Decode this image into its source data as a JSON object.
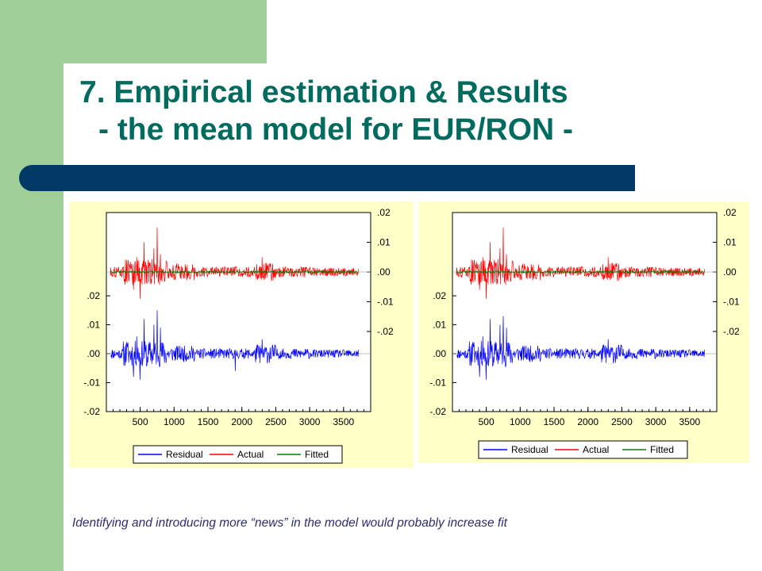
{
  "slide": {
    "title_line1": "7. Empirical estimation & Results",
    "title_line2": "- the mean model for EUR/RON -",
    "footnote": "Identifying and introducing more “news” in the model would probably increase fit"
  },
  "colors": {
    "green_band": "#9fcf97",
    "title_text": "#006b5e",
    "title_bar": "#003866",
    "panel_bg": "#ffffc8",
    "residual": "#0000ff",
    "actual": "#ff0000",
    "fitted": "#008000"
  },
  "chart_data": [
    {
      "type": "line",
      "title": "",
      "xlabel": "",
      "ylabel": "",
      "x_range": [
        1,
        3900
      ],
      "x_ticks": [
        "500",
        "1000",
        "1500",
        "2000",
        "2500",
        "3000",
        "3500"
      ],
      "left_axis": {
        "ticks": [
          ".02",
          ".01",
          ".00",
          "-.01",
          "-.02"
        ],
        "range": [
          -0.02,
          0.02
        ]
      },
      "right_axis": {
        "ticks": [
          ".02",
          ".01",
          ".00",
          "-.01",
          "-.02"
        ],
        "range": [
          -0.02,
          0.02
        ]
      },
      "series": [
        {
          "name": "Residual",
          "axis": "left",
          "color": "#0000ff",
          "description_points": [
            [
              60,
              0.0
            ],
            [
              300,
              0.004
            ],
            [
              400,
              -0.008
            ],
            [
              450,
              0.006
            ],
            [
              500,
              -0.009
            ],
            [
              560,
              0.012
            ],
            [
              600,
              -0.004
            ],
            [
              700,
              0.01
            ],
            [
              750,
              0.015
            ],
            [
              800,
              0.009
            ],
            [
              1000,
              0.003
            ],
            [
              1500,
              0.002
            ],
            [
              1900,
              -0.006
            ],
            [
              2000,
              0.003
            ],
            [
              2300,
              0.005
            ],
            [
              2450,
              -0.003
            ],
            [
              3000,
              0.002
            ],
            [
              3500,
              0.001
            ],
            [
              3700,
              0.0
            ]
          ]
        },
        {
          "name": "Actual",
          "axis": "right",
          "color": "#ff0000",
          "description_points": [
            [
              60,
              0.0
            ],
            [
              300,
              0.004
            ],
            [
              400,
              -0.006
            ],
            [
              450,
              0.005
            ],
            [
              500,
              -0.009
            ],
            [
              560,
              0.01
            ],
            [
              600,
              -0.004
            ],
            [
              700,
              0.008
            ],
            [
              750,
              0.015
            ],
            [
              800,
              0.006
            ],
            [
              1000,
              0.002
            ],
            [
              1500,
              0.002
            ],
            [
              2300,
              0.005
            ],
            [
              2450,
              -0.003
            ],
            [
              3500,
              0.001
            ],
            [
              3700,
              0.0
            ]
          ]
        },
        {
          "name": "Fitted",
          "axis": "right",
          "color": "#008000",
          "description_points": [
            [
              60,
              0.0
            ],
            [
              500,
              0.0005
            ],
            [
              1000,
              -0.0005
            ],
            [
              2000,
              0.0005
            ],
            [
              3100,
              -0.002
            ],
            [
              3700,
              0.0
            ]
          ]
        }
      ],
      "legend": [
        "Residual",
        "Actual",
        "Fitted"
      ],
      "legend_position": "bottom",
      "grid": false
    },
    {
      "type": "line",
      "title": "",
      "xlabel": "",
      "ylabel": "",
      "x_range": [
        1,
        3900
      ],
      "x_ticks": [
        "500",
        "1000",
        "1500",
        "2000",
        "2500",
        "3000",
        "3500"
      ],
      "left_axis": {
        "ticks": [
          ".02",
          ".01",
          ".00",
          "-.01",
          "-.02"
        ],
        "range": [
          -0.02,
          0.02
        ]
      },
      "right_axis": {
        "ticks": [
          ".02",
          ".01",
          ".00",
          "-.01",
          "-.02"
        ],
        "range": [
          -0.02,
          0.02
        ]
      },
      "series": [
        {
          "name": "Residual",
          "axis": "left",
          "color": "#0000ff",
          "description_points": [
            [
              60,
              0.0
            ],
            [
              300,
              0.004
            ],
            [
              400,
              -0.008
            ],
            [
              450,
              0.006
            ],
            [
              500,
              -0.009
            ],
            [
              560,
              0.012
            ],
            [
              600,
              -0.004
            ],
            [
              700,
              0.01
            ],
            [
              750,
              0.013
            ],
            [
              800,
              0.009
            ],
            [
              1000,
              0.003
            ],
            [
              1500,
              0.002
            ],
            [
              2300,
              0.005
            ],
            [
              2450,
              -0.003
            ],
            [
              3500,
              0.001
            ],
            [
              3700,
              0.0
            ]
          ]
        },
        {
          "name": "Actual",
          "axis": "right",
          "color": "#ff0000",
          "description_points": [
            [
              60,
              0.0
            ],
            [
              300,
              0.004
            ],
            [
              400,
              -0.006
            ],
            [
              450,
              0.005
            ],
            [
              500,
              -0.009
            ],
            [
              560,
              0.01
            ],
            [
              600,
              -0.004
            ],
            [
              700,
              0.008
            ],
            [
              750,
              0.015
            ],
            [
              800,
              0.006
            ],
            [
              1000,
              0.002
            ],
            [
              1500,
              0.002
            ],
            [
              2300,
              0.005
            ],
            [
              2450,
              -0.003
            ],
            [
              3500,
              0.001
            ],
            [
              3700,
              0.0
            ]
          ]
        },
        {
          "name": "Fitted",
          "axis": "right",
          "color": "#008000",
          "description_points": [
            [
              60,
              0.0
            ],
            [
              500,
              0.0005
            ],
            [
              1000,
              -0.0005
            ],
            [
              2000,
              0.0005
            ],
            [
              3100,
              -0.002
            ],
            [
              3700,
              0.0
            ]
          ]
        }
      ],
      "legend": [
        "Residual",
        "Actual",
        "Fitted"
      ],
      "legend_position": "bottom",
      "grid": false
    }
  ]
}
